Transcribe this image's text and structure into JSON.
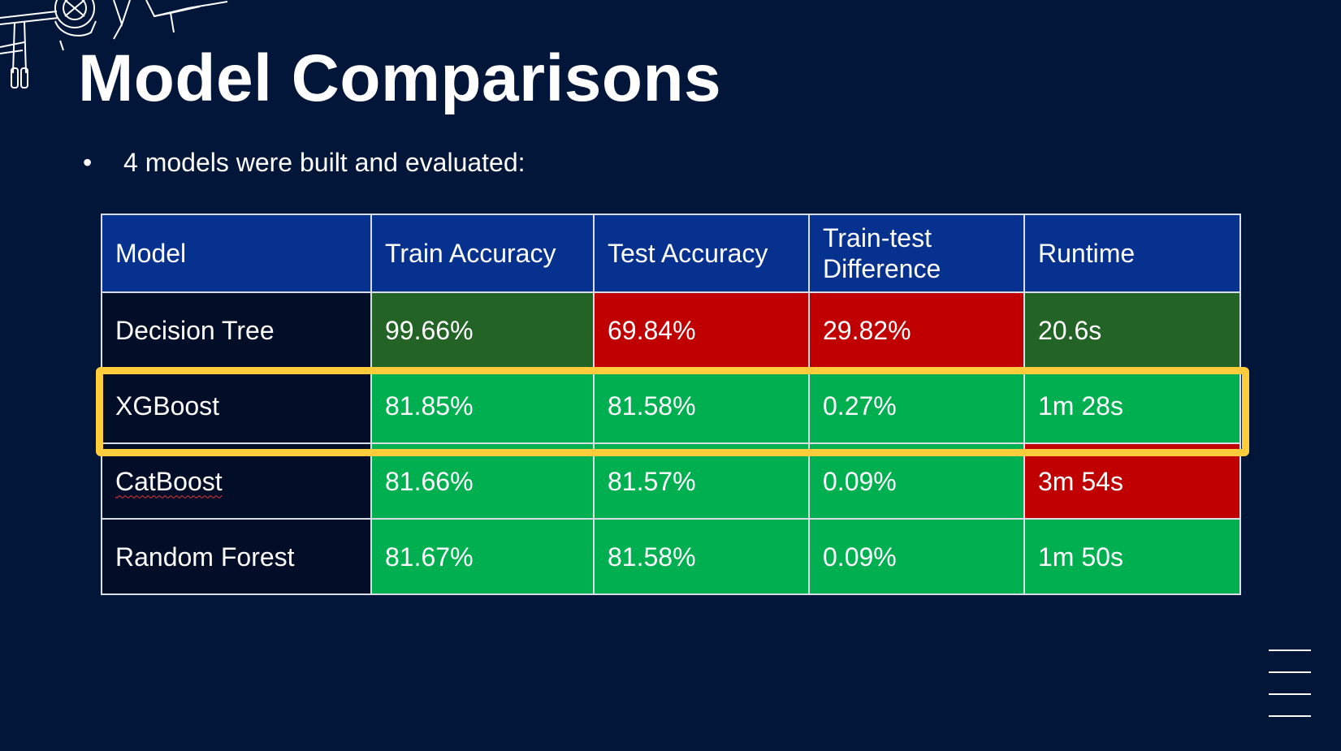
{
  "slide": {
    "title": "Model Comparisons",
    "bullet": "4 models were built and evaluated:"
  },
  "table": {
    "headers": [
      "Model",
      "Train Accuracy",
      "Test Accuracy",
      "Train-test Difference",
      "Runtime"
    ],
    "rows": [
      {
        "model": "Decision Tree",
        "train": "99.66%",
        "test": "69.84%",
        "diff": "29.82%",
        "runtime": "20.6s"
      },
      {
        "model": "XGBoost",
        "train": "81.85%",
        "test": "81.58%",
        "diff": "0.27%",
        "runtime": "1m 28s"
      },
      {
        "model": "CatBoost",
        "train": "81.66%",
        "test": "81.57%",
        "diff": "0.09%",
        "runtime": "3m 54s"
      },
      {
        "model": "Random Forest",
        "train": "81.67%",
        "test": "81.58%",
        "diff": "0.09%",
        "runtime": "1m 50s"
      }
    ]
  },
  "highlighted_row": "XGBoost",
  "colors": {
    "background": "#02163a",
    "header": "#06318e",
    "model_cell": "#020d28",
    "dark_green": "#236326",
    "red": "#c00000",
    "green": "#00b050",
    "highlight": "#ffcd3c"
  },
  "icons": [
    "airplane-decoration-icon",
    "menu-lines-icon"
  ]
}
